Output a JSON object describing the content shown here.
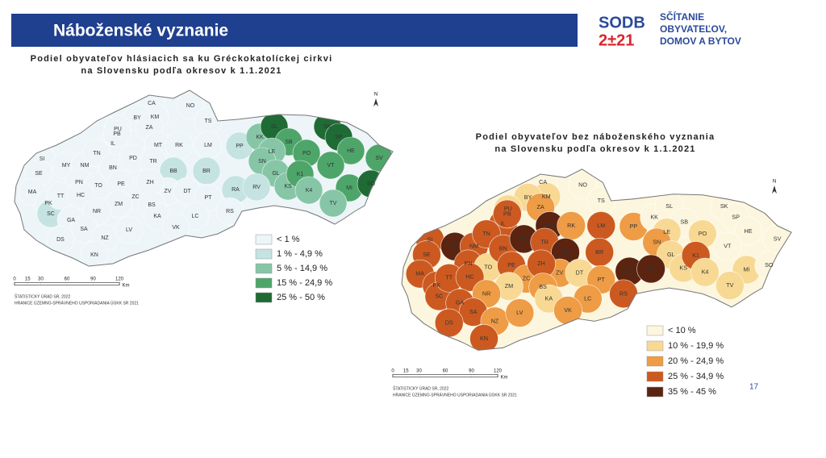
{
  "header": {
    "title": "Náboženské vyznanie",
    "logo_top": "SODB",
    "logo_bottom": "2±21",
    "logo_text": [
      "SČÍTANIE",
      "OBYVATEĽOV,",
      "DOMOV A BYTOV"
    ]
  },
  "page_number": "17",
  "maps": [
    {
      "title": [
        "Podiel obyvateľov hlásiacich sa ku Gréckokatolíckej cirkvi",
        "na Slovensku podľa okresov k 1.1.2021"
      ],
      "north": "N",
      "legend": [
        "< 1 %",
        "1 % - 4,9 %",
        "5 % - 14,9 %",
        "15 % - 24,9 %",
        "25 % - 50 %"
      ],
      "colors": [
        "#edf5f8",
        "#c4e3e1",
        "#86c6a6",
        "#4ea56a",
        "#1f6b35"
      ],
      "scale": {
        "ticks": [
          0,
          15,
          30,
          60,
          90,
          120
        ],
        "unit": "Km"
      },
      "source": [
        "ŠTATISTICKÝ ÚRAD SR, 2022",
        "HRANICE ÚZEMNO-SPRÁVNEHO USPORIADANIA ÚGKK SR 2021"
      ],
      "districts": [
        {
          "code": "CA",
          "class": 0
        },
        {
          "code": "KM",
          "class": 0
        },
        {
          "code": "NO",
          "class": 0
        },
        {
          "code": "BY",
          "class": 0
        },
        {
          "code": "ZA",
          "class": 0
        },
        {
          "code": "PU",
          "class": 0
        },
        {
          "code": "IL",
          "class": 0
        },
        {
          "code": "PB",
          "class": 0
        },
        {
          "code": "TS",
          "class": 0
        },
        {
          "code": "MT",
          "class": 0
        },
        {
          "code": "RK",
          "class": 0
        },
        {
          "code": "LM",
          "class": 0
        },
        {
          "code": "PP",
          "class": 1
        },
        {
          "code": "KK",
          "class": 2
        },
        {
          "code": "SL",
          "class": 4
        },
        {
          "code": "SK",
          "class": 4
        },
        {
          "code": "SP",
          "class": 4
        },
        {
          "code": "SB",
          "class": 3
        },
        {
          "code": "LE",
          "class": 2
        },
        {
          "code": "PO",
          "class": 3
        },
        {
          "code": "HE",
          "class": 3
        },
        {
          "code": "SV",
          "class": 3
        },
        {
          "code": "SN",
          "class": 2
        },
        {
          "code": "GL",
          "class": 2
        },
        {
          "code": "KS",
          "class": 2
        },
        {
          "code": "K1",
          "class": 3
        },
        {
          "code": "K4",
          "class": 2
        },
        {
          "code": "VT",
          "class": 3
        },
        {
          "code": "MI",
          "class": 3
        },
        {
          "code": "SO",
          "class": 4
        },
        {
          "code": "TV",
          "class": 2
        },
        {
          "code": "SI",
          "class": 0
        },
        {
          "code": "MY",
          "class": 0
        },
        {
          "code": "NM",
          "class": 0
        },
        {
          "code": "SE",
          "class": 0
        },
        {
          "code": "TN",
          "class": 0
        },
        {
          "code": "PN",
          "class": 0
        },
        {
          "code": "TO",
          "class": 0
        },
        {
          "code": "BN",
          "class": 0
        },
        {
          "code": "PE",
          "class": 0
        },
        {
          "code": "PD",
          "class": 0
        },
        {
          "code": "TR",
          "class": 0
        },
        {
          "code": "BB",
          "class": 1
        },
        {
          "code": "BR",
          "class": 1
        },
        {
          "code": "RA",
          "class": 1
        },
        {
          "code": "RV",
          "class": 1
        },
        {
          "code": "ZV",
          "class": 0
        },
        {
          "code": "DT",
          "class": 0
        },
        {
          "code": "ZC",
          "class": 0
        },
        {
          "code": "ZH",
          "class": 0
        },
        {
          "code": "ZM",
          "class": 0
        },
        {
          "code": "MA",
          "class": 0
        },
        {
          "code": "PK",
          "class": 0
        },
        {
          "code": "SC",
          "class": 1
        },
        {
          "code": "TT",
          "class": 0
        },
        {
          "code": "HC",
          "class": 0
        },
        {
          "code": "NR",
          "class": 0
        },
        {
          "code": "GA",
          "class": 0
        },
        {
          "code": "SA",
          "class": 0
        },
        {
          "code": "DS",
          "class": 0
        },
        {
          "code": "NZ",
          "class": 0
        },
        {
          "code": "KN",
          "class": 0
        },
        {
          "code": "LV",
          "class": 0
        },
        {
          "code": "BS",
          "class": 0
        },
        {
          "code": "KA",
          "class": 0
        },
        {
          "code": "PT",
          "class": 0
        },
        {
          "code": "LC",
          "class": 0
        },
        {
          "code": "RS",
          "class": 0
        },
        {
          "code": "VK",
          "class": 0
        }
      ]
    },
    {
      "title": [
        "Podiel obyvateľov bez náboženského vyznania",
        "na Slovensku podľa okresov k 1.1.2021"
      ],
      "north": "N",
      "legend": [
        "< 10 %",
        "10 % - 19,9 %",
        "20 % - 24,9 %",
        "25 % - 34,9 %",
        "35 % - 45 %"
      ],
      "colors": [
        "#fdf6df",
        "#f8d994",
        "#ee9c45",
        "#cc5a20",
        "#5b2410"
      ],
      "scale": {
        "ticks": [
          0,
          15,
          30,
          60,
          90,
          120
        ],
        "unit": "Km"
      },
      "source": [
        "ŠTATISTICKÝ ÚRAD SR, 2022",
        "HRANICE ÚZEMNO-SPRÁVNEHO USPORIADANIA ÚGKK SR 2021"
      ],
      "districts": [
        {
          "code": "CA",
          "class": 0
        },
        {
          "code": "KM",
          "class": 1
        },
        {
          "code": "NO",
          "class": 0
        },
        {
          "code": "BY",
          "class": 1
        },
        {
          "code": "ZA",
          "class": 2
        },
        {
          "code": "PU",
          "class": 1
        },
        {
          "code": "IL",
          "class": 3
        },
        {
          "code": "PB",
          "class": 3
        },
        {
          "code": "TS",
          "class": 0
        },
        {
          "code": "MT",
          "class": 4
        },
        {
          "code": "RK",
          "class": 2
        },
        {
          "code": "LM",
          "class": 3
        },
        {
          "code": "PP",
          "class": 2
        },
        {
          "code": "KK",
          "class": 0
        },
        {
          "code": "SL",
          "class": 0
        },
        {
          "code": "SK",
          "class": 0
        },
        {
          "code": "SP",
          "class": 0
        },
        {
          "code": "SB",
          "class": 0
        },
        {
          "code": "LE",
          "class": 1
        },
        {
          "code": "PO",
          "class": 1
        },
        {
          "code": "HE",
          "class": 0
        },
        {
          "code": "SV",
          "class": 0
        },
        {
          "code": "SN",
          "class": 2
        },
        {
          "code": "GL",
          "class": 1
        },
        {
          "code": "KS",
          "class": 1
        },
        {
          "code": "K1",
          "class": 3
        },
        {
          "code": "K4",
          "class": 1
        },
        {
          "code": "VT",
          "class": 0
        },
        {
          "code": "MI",
          "class": 1
        },
        {
          "code": "SO",
          "class": 0
        },
        {
          "code": "TV",
          "class": 1
        },
        {
          "code": "SI",
          "class": 3
        },
        {
          "code": "MY",
          "class": 4
        },
        {
          "code": "NM",
          "class": 3
        },
        {
          "code": "SE",
          "class": 3
        },
        {
          "code": "TN",
          "class": 3
        },
        {
          "code": "PN",
          "class": 3
        },
        {
          "code": "TO",
          "class": 1
        },
        {
          "code": "BN",
          "class": 3
        },
        {
          "code": "PE",
          "class": 3
        },
        {
          "code": "PD",
          "class": 4
        },
        {
          "code": "TR",
          "class": 3
        },
        {
          "code": "BB",
          "class": 4
        },
        {
          "code": "BR",
          "class": 3
        },
        {
          "code": "RA",
          "class": 4
        },
        {
          "code": "RV",
          "class": 4
        },
        {
          "code": "ZV",
          "class": 2
        },
        {
          "code": "DT",
          "class": 1
        },
        {
          "code": "ZC",
          "class": 2
        },
        {
          "code": "ZH",
          "class": 3
        },
        {
          "code": "ZM",
          "class": 1
        },
        {
          "code": "MA",
          "class": 3
        },
        {
          "code": "PK",
          "class": 3
        },
        {
          "code": "SC",
          "class": 3
        },
        {
          "code": "TT",
          "class": 3
        },
        {
          "code": "HC",
          "class": 3
        },
        {
          "code": "NR",
          "class": 2
        },
        {
          "code": "GA",
          "class": 3
        },
        {
          "code": "SA",
          "class": 3
        },
        {
          "code": "DS",
          "class": 3
        },
        {
          "code": "NZ",
          "class": 2
        },
        {
          "code": "KN",
          "class": 3
        },
        {
          "code": "LV",
          "class": 2
        },
        {
          "code": "BS",
          "class": 2
        },
        {
          "code": "KA",
          "class": 1
        },
        {
          "code": "PT",
          "class": 2
        },
        {
          "code": "LC",
          "class": 2
        },
        {
          "code": "RS",
          "class": 3
        },
        {
          "code": "VK",
          "class": 2
        }
      ]
    }
  ]
}
